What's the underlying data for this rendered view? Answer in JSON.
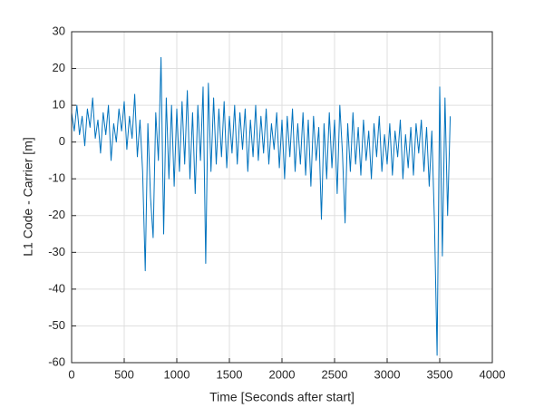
{
  "chart_data": {
    "type": "line",
    "x_label": "Time [Seconds after start]",
    "y_label": "L1 Code - Carrier [m]",
    "xlim": [
      0,
      4000
    ],
    "xticks": [
      0,
      500,
      1000,
      1500,
      2000,
      2500,
      3000,
      3500,
      4000
    ],
    "ylim": [
      -60,
      30
    ],
    "yticks": [
      -60,
      -50,
      -40,
      -30,
      -20,
      -10,
      0,
      10,
      20,
      30
    ],
    "grid": true,
    "x": [
      0,
      25,
      50,
      75,
      100,
      125,
      150,
      175,
      200,
      225,
      250,
      275,
      300,
      325,
      350,
      375,
      400,
      425,
      450,
      475,
      500,
      525,
      550,
      575,
      600,
      625,
      650,
      675,
      700,
      725,
      750,
      775,
      800,
      825,
      850,
      875,
      900,
      925,
      950,
      975,
      1000,
      1025,
      1050,
      1075,
      1100,
      1125,
      1150,
      1175,
      1200,
      1225,
      1250,
      1275,
      1300,
      1325,
      1350,
      1375,
      1400,
      1425,
      1450,
      1475,
      1500,
      1525,
      1550,
      1575,
      1600,
      1625,
      1650,
      1675,
      1700,
      1725,
      1750,
      1775,
      1800,
      1825,
      1850,
      1875,
      1900,
      1925,
      1950,
      1975,
      2000,
      2025,
      2050,
      2075,
      2100,
      2125,
      2150,
      2175,
      2200,
      2225,
      2250,
      2275,
      2300,
      2325,
      2350,
      2375,
      2400,
      2425,
      2450,
      2475,
      2500,
      2525,
      2550,
      2575,
      2600,
      2625,
      2650,
      2675,
      2700,
      2725,
      2750,
      2775,
      2800,
      2825,
      2850,
      2875,
      2900,
      2925,
      2950,
      2975,
      3000,
      3025,
      3050,
      3075,
      3100,
      3125,
      3150,
      3175,
      3200,
      3225,
      3250,
      3275,
      3300,
      3325,
      3350,
      3375,
      3400,
      3425,
      3450,
      3475,
      3500,
      3525,
      3550,
      3575,
      3600
    ],
    "series": [
      {
        "color": "#0072bd",
        "values": [
          8,
          3,
          10,
          2,
          7,
          -1,
          9,
          4,
          12,
          1,
          6,
          -3,
          8,
          2,
          10,
          -5,
          5,
          0,
          9,
          3,
          11,
          -2,
          7,
          1,
          13,
          -4,
          6,
          -8,
          -35,
          5,
          -15,
          -26,
          8,
          -5,
          23,
          -25,
          12,
          -10,
          10,
          -12,
          9,
          -8,
          11,
          -6,
          14,
          -10,
          8,
          -14,
          10,
          -5,
          15,
          -33,
          16,
          -8,
          12,
          -6,
          9,
          -4,
          11,
          -7,
          7,
          -3,
          10,
          -6,
          8,
          -2,
          9,
          -8,
          6,
          -4,
          10,
          -5,
          7,
          -3,
          9,
          -6,
          5,
          -2,
          8,
          -7,
          6,
          -10,
          7,
          -4,
          9,
          -8,
          5,
          -6,
          8,
          -9,
          6,
          -12,
          7,
          -5,
          4,
          -21,
          5,
          -10,
          8,
          -7,
          6,
          -14,
          10,
          -3,
          -22,
          5,
          -8,
          8,
          -6,
          4,
          -9,
          6,
          -5,
          3,
          -10,
          5,
          -4,
          7,
          -8,
          2,
          -6,
          5,
          -9,
          3,
          -4,
          6,
          -10,
          2,
          -7,
          4,
          -9,
          5,
          -3,
          6,
          -8,
          4,
          -12,
          3,
          -22,
          -58,
          15,
          -31,
          12,
          -20,
          7
        ]
      }
    ]
  }
}
